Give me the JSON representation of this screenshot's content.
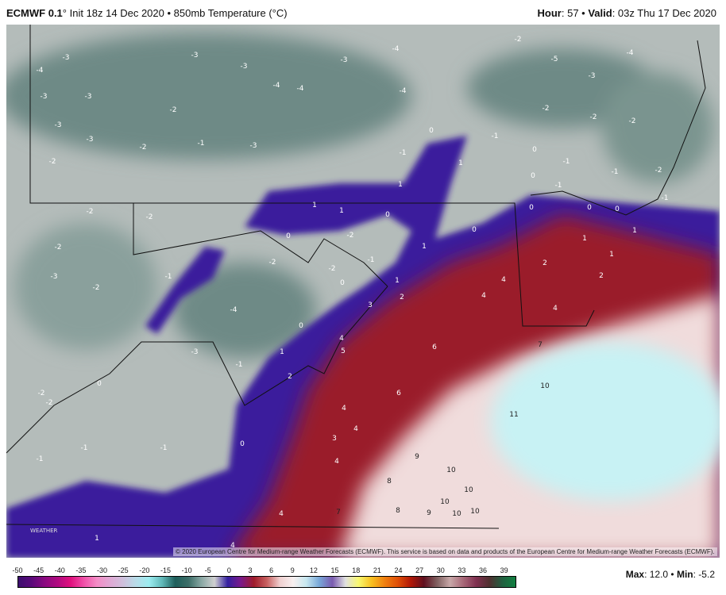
{
  "header": {
    "model": "ECMWF 0.1",
    "model_unit": "°",
    "init": " Init 18z 14 Dec 2020 • 850mb Temperature (°C)",
    "hour_label": "Hour",
    "hour": ": 57 • ",
    "valid_label": "Valid",
    "valid": ": 03z Thu 17 Dec 2020"
  },
  "copyright": "© 2020 European Centre for Medium-range Weather Forecasts (ECMWF). This service is based on data and products of the European Centre for Medium-range Weather Forecasts (ECMWF).",
  "colorbar": {
    "ticks": [
      "-50",
      "-45",
      "-40",
      "-35",
      "-30",
      "-25",
      "-20",
      "-15",
      "-10",
      "-5",
      "0",
      "3",
      "6",
      "9",
      "12",
      "15",
      "18",
      "21",
      "24",
      "27",
      "30",
      "33",
      "36",
      "39"
    ],
    "colors": [
      "#3b0e6e",
      "#5a0a7a",
      "#8a0a80",
      "#b00a80",
      "#e0107e",
      "#f050a8",
      "#f48cc6",
      "#e0a8d4",
      "#cfc0dc",
      "#b8dce8",
      "#9cecf0",
      "#60b8b8",
      "#1e5e5a",
      "#3c6e68",
      "#8aa8a4",
      "#d0d0d0",
      "#3420a0",
      "#7a1a8a",
      "#a01c2c",
      "#c86060",
      "#f0d0d0",
      "#f8f0f0",
      "#c8e8f0",
      "#78a8d8",
      "#7a5ab0",
      "#e0e0e0",
      "#f8f870",
      "#f8c020",
      "#f08010",
      "#e05008",
      "#b01808",
      "#601020",
      "#806060",
      "#c8a8a8",
      "#a86878",
      "#803050",
      "#503030",
      "#206040",
      "#108040"
    ]
  },
  "stats": {
    "max_label": "Max",
    "max": ": 12.0 • ",
    "min_label": "Min",
    "min": ": -5.2"
  },
  "map": {
    "values": [
      "-4",
      "-3",
      "-3",
      "-3",
      "-3",
      "-3",
      "-2",
      "-2",
      "-1",
      "-3",
      "-2",
      "-3",
      "-3",
      "-4",
      "-4",
      "-3",
      "-4",
      "-4",
      "-2",
      "-5",
      "-4",
      "-3",
      "-1",
      "0",
      "-1",
      "1",
      "1",
      "0",
      "0",
      "-1",
      "-2",
      "-2",
      "-2",
      "-1",
      "-2",
      "-1",
      "0",
      "0",
      "0",
      "-1",
      "-2",
      "-2",
      "1",
      "1",
      "0",
      "-2",
      "0",
      "-2",
      "-3",
      "-2",
      "-1",
      "-2",
      "-2",
      "-1",
      "0",
      "1",
      "1",
      "0",
      "2",
      "1",
      "1",
      "1",
      "2",
      "4",
      "4",
      "3",
      "2",
      "4",
      "0",
      "1",
      "4",
      "5",
      "6",
      "7",
      "-4",
      "-3",
      "-1",
      "0",
      "-2",
      "-2",
      "2",
      "6",
      "10",
      "11",
      "4",
      "4",
      "3",
      "0",
      "-1",
      "-1",
      "-1",
      "4",
      "9",
      "10",
      "8",
      "10",
      "10",
      "8",
      "9",
      "7",
      "10",
      "10",
      "4",
      "1",
      "4"
    ],
    "colors": {
      "cold": "#7e9894",
      "cool": "#b8c0be",
      "zero_band": "#3a1c9c",
      "warm": "#9a1c2a",
      "mild": "#f2e0e0",
      "cyan": "#c8f0f2"
    },
    "logo_text": "WEATHER"
  }
}
